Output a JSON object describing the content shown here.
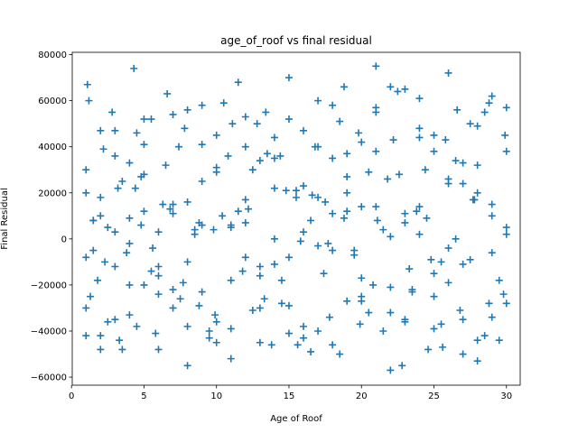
{
  "chart_data": {
    "type": "scatter",
    "title": "age_of_roof vs final residual",
    "xlabel": "Age of Roof",
    "ylabel": "Final Residual",
    "xlim": [
      0.05,
      30.95
    ],
    "ylim": [
      -63500,
      81000
    ],
    "xticks": [
      0,
      5,
      10,
      15,
      20,
      25,
      30
    ],
    "yticks": [
      -60000,
      -40000,
      -20000,
      0,
      20000,
      40000,
      60000,
      80000
    ],
    "xtick_labels": [
      "0",
      "5",
      "10",
      "15",
      "20",
      "25",
      "30"
    ],
    "ytick_labels": [
      "−60000",
      "−40000",
      "−20000",
      "0",
      "20000",
      "40000",
      "60000",
      "80000"
    ],
    "marker": "+",
    "grid": false,
    "legend": "none",
    "colors": {
      "marker": "#1f77b4",
      "axes": "#000000",
      "background": "#ffffff"
    },
    "series": [
      {
        "x": [
          1.0,
          1.1,
          1.3,
          1.5,
          2.0,
          2.3,
          2.5,
          3.0,
          3.2,
          3.5,
          4.0,
          4.3,
          4.8,
          5.0,
          5.5,
          6.0,
          6.3,
          7.0,
          7.4,
          8.0,
          8.5,
          9.0,
          9.5,
          10.0,
          10.4,
          11.0,
          11.5,
          12.0,
          12.5,
          13.0,
          13.4,
          14.0,
          14.5,
          15.0,
          15.5,
          16.0,
          16.5,
          17.0,
          17.4,
          18.0,
          18.5,
          19.0,
          19.5,
          20.0,
          20.5,
          21.0,
          21.5,
          22.0,
          22.6,
          23.0,
          23.5,
          24.0,
          24.6,
          25.0,
          25.5,
          26.0,
          26.5,
          27.0,
          27.5,
          28.0,
          28.5,
          29.0,
          29.5,
          30.0,
          1.0,
          1.5,
          2.0,
          3.0,
          4.0,
          4.5,
          5.0,
          6.0,
          7.0,
          8.0,
          9.0,
          10.0,
          11.0,
          12.0,
          13.0,
          14.0,
          15.0,
          16.0,
          17.0,
          18.0,
          19.0,
          20.0,
          21.0,
          22.0,
          23.0,
          24.0,
          25.0,
          26.0,
          27.0,
          28.0,
          29.0,
          30.0,
          1.2,
          2.2,
          3.3,
          4.4,
          5.6,
          6.6,
          7.7,
          8.8,
          9.9,
          11.1,
          12.2,
          13.3,
          14.4,
          15.6,
          16.6,
          17.7,
          18.8,
          19.9,
          21.1,
          22.2,
          23.3,
          24.4,
          25.6,
          26.6,
          27.7,
          28.8,
          29.9,
          1.0,
          2.0,
          3.0,
          4.0,
          5.0,
          6.0,
          7.0,
          8.0,
          9.0,
          10.0,
          11.0,
          12.0,
          13.0,
          14.0,
          15.0,
          16.0,
          17.0,
          18.0,
          19.0,
          20.0,
          21.0,
          22.0,
          23.0,
          24.0,
          25.0,
          26.0,
          27.0,
          28.0,
          29.0,
          30.0,
          1.5,
          2.5,
          3.5,
          4.5,
          5.5,
          6.5,
          7.5,
          8.5,
          9.5,
          10.5,
          11.5,
          12.5,
          13.5,
          14.5,
          15.5,
          16.5,
          17.5,
          18.5,
          19.5,
          20.5,
          21.5,
          22.5,
          23.5,
          24.5,
          25.5,
          26.5,
          27.5,
          28.5,
          29.5,
          1.0,
          2.0,
          3.0,
          4.0,
          5.0,
          6.0,
          7.0,
          8.0,
          9.0,
          10.0,
          11.0,
          12.0,
          13.0,
          14.0,
          15.0,
          16.0,
          17.0,
          18.0,
          19.0,
          20.0,
          21.0,
          22.0,
          23.0,
          24.0,
          25.0,
          26.0,
          27.0,
          28.0,
          29.0,
          30.0,
          1.8,
          2.8,
          3.8,
          4.8,
          5.8,
          6.8,
          7.8,
          8.8,
          9.8,
          10.8,
          11.8,
          12.8,
          13.8,
          14.8,
          15.8,
          16.8,
          17.8,
          18.8,
          19.8,
          20.8,
          21.8,
          22.8,
          23.8,
          24.8,
          25.8,
          26.8,
          27.8,
          28.8,
          29.8,
          1.0,
          2.0,
          3.0,
          4.0,
          5.0,
          6.0,
          7.0,
          8.0,
          9.0,
          10.0,
          11.0,
          12.0,
          13.0,
          14.0,
          15.0,
          16.0,
          17.0,
          18.0,
          19.0,
          20.0,
          21.0,
          22.0,
          23.0,
          24.0,
          25.0,
          26.0,
          27.0,
          28.0,
          29.0,
          30.0
        ],
        "y": [
          -42000,
          67000,
          -25000,
          8000,
          47000,
          -10000,
          5000,
          -35000,
          22000,
          -48000,
          33000,
          74000,
          6000,
          -20000,
          52000,
          -12000,
          15000,
          -30000,
          40000,
          -55000,
          2000,
          25000,
          -40000,
          45000,
          10000,
          -18000,
          68000,
          -8000,
          30000,
          -45000,
          55000,
          0,
          -28000,
          70000,
          18000,
          -38000,
          8000,
          60000,
          -15000,
          35000,
          -50000,
          12000,
          -5000,
          42000,
          -32000,
          75000,
          4000,
          -57000,
          28000,
          65000,
          -22000,
          14000,
          -48000,
          38000,
          -10000,
          72000,
          0,
          -35000,
          50000,
          20000,
          -42000,
          62000,
          -18000,
          5000,
          30000,
          -5000,
          18000,
          -12000,
          9000,
          -38000,
          52000,
          3000,
          -22000,
          16000,
          58000,
          -45000,
          6000,
          40000,
          -30000,
          22000,
          -8000,
          47000,
          -40000,
          11000,
          27000,
          -25000,
          55000,
          1000,
          -35000,
          44000,
          -15000,
          24000,
          -50000,
          32000,
          -6000,
          57000,
          60000,
          39000,
          -44000,
          22000,
          -4000,
          63000,
          -19000,
          7000,
          -33000,
          50000,
          13000,
          -26000,
          36000,
          -46000,
          19000,
          -2000,
          66000,
          -37000,
          8000,
          43000,
          -13000,
          30000,
          -47000,
          56000,
          17000,
          -28000,
          45000,
          -30000,
          10000,
          47000,
          -20000,
          28000,
          -48000,
          15000,
          -10000,
          41000,
          -36000,
          5000,
          53000,
          -16000,
          35000,
          -41000,
          23000,
          -3000,
          58000,
          -27000,
          14000,
          38000,
          -21000,
          7000,
          61000,
          -39000,
          26000,
          -11000,
          49000,
          -34000,
          2000,
          8000,
          -36000,
          25000,
          46000,
          -14000,
          32000,
          -26000,
          4000,
          -43000,
          59000,
          12000,
          -31000,
          37000,
          -18000,
          21000,
          -49000,
          16000,
          51000,
          -7000,
          29000,
          -40000,
          64000,
          -23000,
          9000,
          -37000,
          34000,
          -9000,
          55000,
          -44000,
          -8000,
          -42000,
          36000,
          -2000,
          12000,
          -24000,
          54000,
          -38000,
          6000,
          31000,
          -52000,
          17000,
          -12000,
          44000,
          -29000,
          3000,
          40000,
          -46000,
          20000,
          -17000,
          57000,
          -32000,
          11000,
          48000,
          -25000,
          -4000,
          33000,
          -53000,
          15000,
          38000,
          -18000,
          55000,
          -6000,
          27000,
          -41000,
          13000,
          48000,
          -29000,
          4000,
          36000,
          -14000,
          50000,
          -46000,
          21000,
          -1000,
          40000,
          -34000,
          9000,
          46000,
          -20000,
          26000,
          -55000,
          12000,
          -9000,
          43000,
          -31000,
          17000,
          59000,
          -24000,
          20000,
          -48000,
          3000,
          -33000,
          41000,
          -16000,
          11000,
          56000,
          -23000,
          29000,
          -39000,
          7000,
          34000,
          -11000,
          52000,
          -43000,
          18000,
          -5000,
          37000,
          -27000,
          14000,
          66000,
          -36000,
          2000,
          45000,
          -19000,
          24000,
          -44000,
          10000,
          -28000
        ]
      }
    ]
  }
}
